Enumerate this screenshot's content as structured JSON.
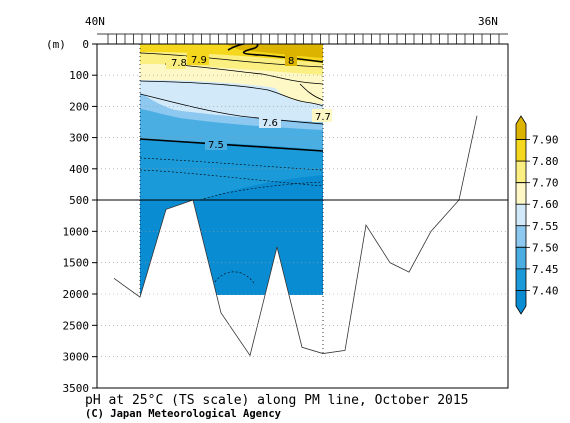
{
  "chart_data": {
    "type": "heatmap",
    "title": "pH at 25°C (TS scale) along PM line, October 2015",
    "credit": "(C) Japan Meteorological Agency",
    "xlabel": "",
    "ylabel": "(m)",
    "x_top_labels": [
      "40N",
      "36N"
    ],
    "y_ticks_upper": [
      0,
      100,
      200,
      300,
      400,
      500
    ],
    "y_ticks_lower": [
      1000,
      1500,
      2000,
      2500,
      3000,
      3500
    ],
    "ylim_upper": [
      0,
      500
    ],
    "ylim_lower": [
      500,
      3500
    ],
    "grid": true,
    "grid_style": "dotted",
    "colorbar": {
      "levels": [
        "7.90",
        "7.80",
        "7.70",
        "7.60",
        "7.55",
        "7.50",
        "7.45",
        "7.40"
      ],
      "colors": [
        "#dcb400",
        "#f5d81e",
        "#fbef82",
        "#fdf8c6",
        "#d2e9fa",
        "#8cc8ef",
        "#4baee2",
        "#1b9ad9",
        "#0a8cd2"
      ],
      "placement": "right"
    },
    "contour_labels": [
      {
        "text": "7.8",
        "depth": 60
      },
      {
        "text": "7.9",
        "depth": 55
      },
      {
        "text": "8",
        "depth": 55
      },
      {
        "text": "7.7",
        "depth": 235
      },
      {
        "text": "7.6",
        "depth": 250
      },
      {
        "text": "7.5",
        "depth": 320
      }
    ],
    "section_depth_max": 2000,
    "bottom_depth_profile": [
      {
        "station": 0,
        "depth": 1750
      },
      {
        "station": 1,
        "depth": 2050
      },
      {
        "station": 2,
        "depth": 650
      },
      {
        "station": 3,
        "depth": 500
      },
      {
        "station": 4,
        "depth": 2300
      },
      {
        "station": 5,
        "depth": 2980
      },
      {
        "station": 6,
        "depth": 1250
      },
      {
        "station": 7,
        "depth": 2850
      },
      {
        "station": 8,
        "depth": 2950
      },
      {
        "station": 9,
        "depth": 2900
      },
      {
        "station": 10,
        "depth": 900
      },
      {
        "station": 11,
        "depth": 1500
      },
      {
        "station": 12,
        "depth": 1650
      },
      {
        "station": 13,
        "depth": 1000
      },
      {
        "station": 14,
        "depth": 500
      },
      {
        "station": 15,
        "depth": 230
      }
    ]
  }
}
